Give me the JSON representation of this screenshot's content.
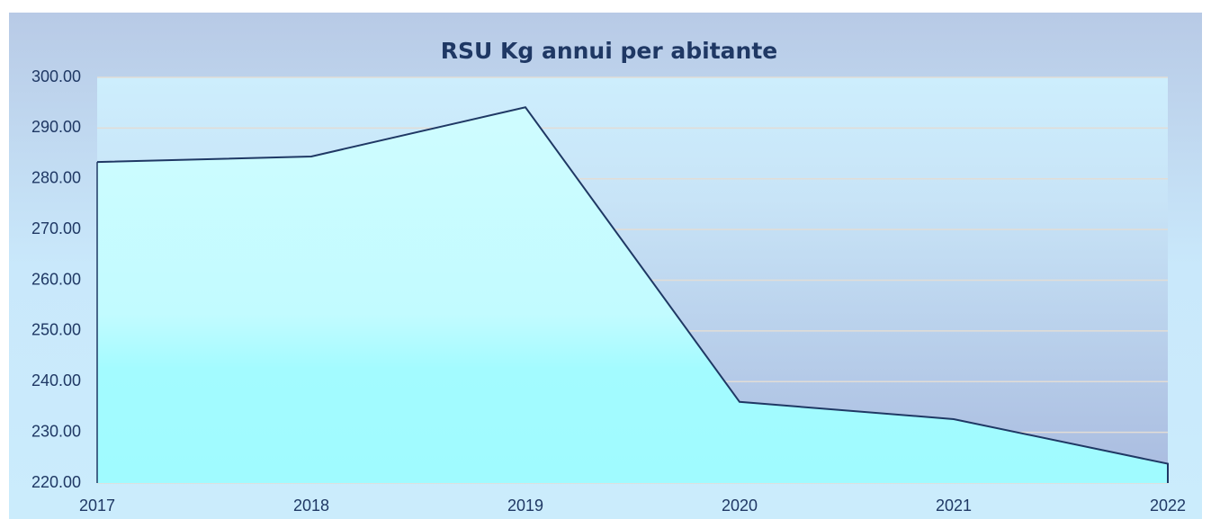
{
  "chart_data": {
    "type": "area",
    "title": "RSU Kg annui per abitante",
    "categories": [
      "2017",
      "2018",
      "2019",
      "2020",
      "2021",
      "2022"
    ],
    "values": [
      283.3,
      284.4,
      294.1,
      236.0,
      232.6,
      223.8
    ],
    "color": "#1f3864",
    "ylim": [
      220,
      300
    ],
    "yticks": [
      {
        "value": 220,
        "label": "220.00"
      },
      {
        "value": 230,
        "label": "230.00"
      },
      {
        "value": 240,
        "label": "240.00"
      },
      {
        "value": 250,
        "label": "250.00"
      },
      {
        "value": 260,
        "label": "260.00"
      },
      {
        "value": 270,
        "label": "270.00"
      },
      {
        "value": 280,
        "label": "280.00"
      },
      {
        "value": 290,
        "label": "290.00"
      },
      {
        "value": 300,
        "label": "300.00"
      }
    ],
    "grid": true
  }
}
